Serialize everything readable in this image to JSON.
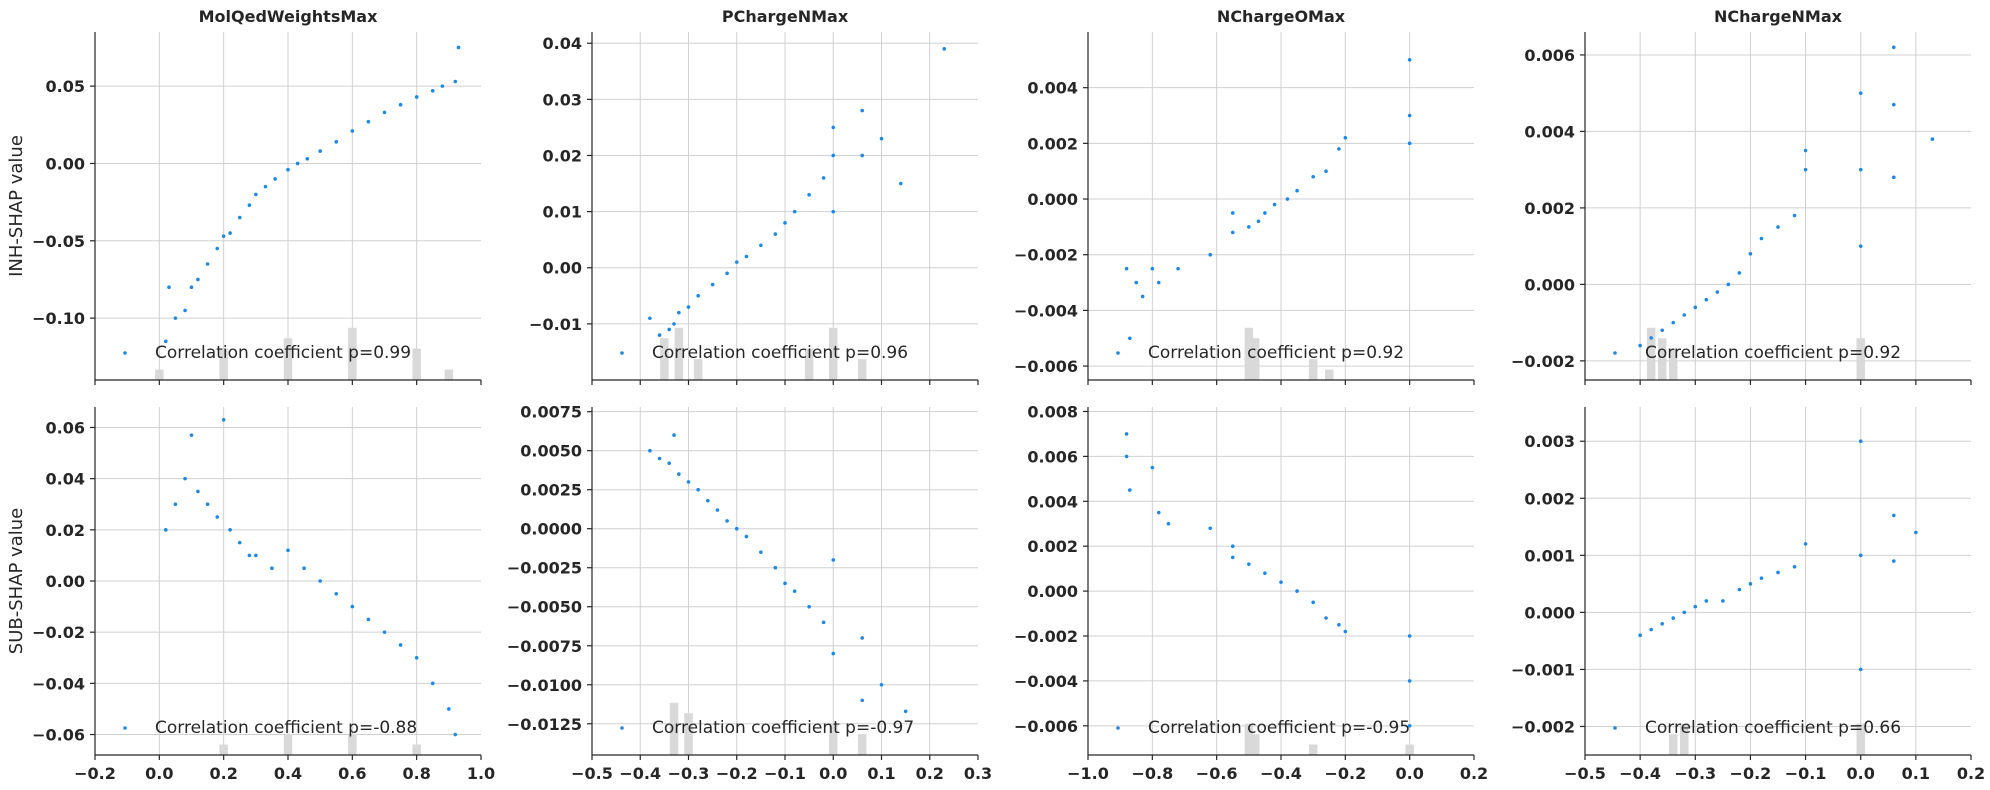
{
  "row_labels": [
    "INH-SHAP value",
    "SUB-SHAP value"
  ],
  "column_titles": [
    "MolQedWeightsMax",
    "PChargeNMax",
    "NChargeOMax",
    "NChargeNMax"
  ],
  "colors": {
    "point": "#1e88e5",
    "histogram": "#d9d9d9",
    "grid": "#d0d0d0"
  },
  "chart_data": [
    {
      "type": "scatter",
      "row": 0,
      "col": 0,
      "title": "MolQedWeightsMax",
      "ylabel": "INH-SHAP value",
      "xlim": [
        -0.2,
        1.0
      ],
      "ylim": [
        -0.14,
        0.085
      ],
      "xticks": [],
      "xtick_labels": [],
      "yticks": [
        -0.1,
        -0.05,
        0.0,
        0.05
      ],
      "ytick_labels": [
        "−0.10",
        "−0.05",
        "0.00",
        "0.05"
      ],
      "legend": "Correlation coefficient p=0.99",
      "points": [
        [
          0.02,
          -0.115
        ],
        [
          0.03,
          -0.08
        ],
        [
          0.05,
          -0.1
        ],
        [
          0.08,
          -0.095
        ],
        [
          0.1,
          -0.08
        ],
        [
          0.12,
          -0.075
        ],
        [
          0.15,
          -0.065
        ],
        [
          0.18,
          -0.055
        ],
        [
          0.2,
          -0.047
        ],
        [
          0.22,
          -0.045
        ],
        [
          0.25,
          -0.035
        ],
        [
          0.28,
          -0.027
        ],
        [
          0.3,
          -0.02
        ],
        [
          0.33,
          -0.015
        ],
        [
          0.36,
          -0.01
        ],
        [
          0.4,
          -0.004
        ],
        [
          0.43,
          0.0
        ],
        [
          0.46,
          0.003
        ],
        [
          0.5,
          0.008
        ],
        [
          0.55,
          0.014
        ],
        [
          0.6,
          0.021
        ],
        [
          0.65,
          0.027
        ],
        [
          0.7,
          0.033
        ],
        [
          0.75,
          0.038
        ],
        [
          0.8,
          0.043
        ],
        [
          0.85,
          0.047
        ],
        [
          0.88,
          0.05
        ],
        [
          0.92,
          0.053
        ],
        [
          0.93,
          0.075
        ]
      ],
      "histogram": [
        [
          0.0,
          0.01
        ],
        [
          0.2,
          0.03
        ],
        [
          0.4,
          0.04
        ],
        [
          0.6,
          0.05
        ],
        [
          0.8,
          0.03
        ],
        [
          0.9,
          0.01
        ]
      ]
    },
    {
      "type": "scatter",
      "row": 0,
      "col": 1,
      "title": "PChargeNMax",
      "ylabel": "",
      "xlim": [
        -0.5,
        0.3
      ],
      "ylim": [
        -0.02,
        0.042
      ],
      "xticks": [],
      "xtick_labels": [],
      "yticks": [
        -0.01,
        0.0,
        0.01,
        0.02,
        0.03,
        0.04
      ],
      "ytick_labels": [
        "−0.01",
        "0.00",
        "0.01",
        "0.02",
        "0.03",
        "0.04"
      ],
      "legend": "Correlation coefficient p=0.96",
      "points": [
        [
          -0.38,
          -0.009
        ],
        [
          -0.36,
          -0.012
        ],
        [
          -0.34,
          -0.011
        ],
        [
          -0.33,
          -0.01
        ],
        [
          -0.32,
          -0.008
        ],
        [
          -0.3,
          -0.007
        ],
        [
          -0.28,
          -0.005
        ],
        [
          -0.25,
          -0.003
        ],
        [
          -0.22,
          -0.001
        ],
        [
          -0.2,
          0.001
        ],
        [
          -0.18,
          0.002
        ],
        [
          -0.15,
          0.004
        ],
        [
          -0.12,
          0.006
        ],
        [
          -0.1,
          0.008
        ],
        [
          -0.08,
          0.01
        ],
        [
          -0.05,
          0.013
        ],
        [
          -0.02,
          0.016
        ],
        [
          0.0,
          0.02
        ],
        [
          0.0,
          0.01
        ],
        [
          0.0,
          0.025
        ],
        [
          0.06,
          0.02
        ],
        [
          0.06,
          0.028
        ],
        [
          0.1,
          0.023
        ],
        [
          0.14,
          0.015
        ],
        [
          0.23,
          0.039
        ]
      ],
      "histogram": [
        [
          -0.35,
          0.04
        ],
        [
          -0.32,
          0.05
        ],
        [
          -0.28,
          0.02
        ],
        [
          -0.05,
          0.03
        ],
        [
          0.0,
          0.05
        ],
        [
          0.06,
          0.02
        ]
      ]
    },
    {
      "type": "scatter",
      "row": 0,
      "col": 2,
      "title": "NChargeOMax",
      "ylabel": "",
      "xlim": [
        -1.0,
        0.2
      ],
      "ylim": [
        -0.0065,
        0.006
      ],
      "xticks": [],
      "xtick_labels": [],
      "yticks": [
        -0.006,
        -0.004,
        -0.002,
        0.0,
        0.002,
        0.004
      ],
      "ytick_labels": [
        "−0.006",
        "−0.004",
        "−0.002",
        "0.000",
        "0.002",
        "0.004"
      ],
      "legend": "Correlation coefficient p=0.92",
      "points": [
        [
          -0.88,
          -0.0025
        ],
        [
          -0.87,
          -0.005
        ],
        [
          -0.85,
          -0.003
        ],
        [
          -0.83,
          -0.0035
        ],
        [
          -0.8,
          -0.0025
        ],
        [
          -0.78,
          -0.003
        ],
        [
          -0.72,
          -0.0025
        ],
        [
          -0.62,
          -0.002
        ],
        [
          -0.55,
          -0.0012
        ],
        [
          -0.55,
          -0.0005
        ],
        [
          -0.5,
          -0.001
        ],
        [
          -0.47,
          -0.0008
        ],
        [
          -0.45,
          -0.0005
        ],
        [
          -0.42,
          -0.0002
        ],
        [
          -0.38,
          0.0
        ],
        [
          -0.35,
          0.0003
        ],
        [
          -0.3,
          0.0008
        ],
        [
          -0.26,
          0.001
        ],
        [
          -0.22,
          0.0018
        ],
        [
          -0.2,
          0.0022
        ],
        [
          0.0,
          0.005
        ],
        [
          0.0,
          0.003
        ],
        [
          0.0,
          0.002
        ]
      ],
      "histogram": [
        [
          -0.5,
          0.05
        ],
        [
          -0.48,
          0.04
        ],
        [
          -0.3,
          0.02
        ],
        [
          -0.25,
          0.01
        ]
      ]
    },
    {
      "type": "scatter",
      "row": 0,
      "col": 3,
      "title": "NChargeNMax",
      "ylabel": "",
      "xlim": [
        -0.5,
        0.2
      ],
      "ylim": [
        -0.0025,
        0.0066
      ],
      "xticks": [],
      "xtick_labels": [],
      "yticks": [
        -0.002,
        0.0,
        0.002,
        0.004,
        0.006
      ],
      "ytick_labels": [
        "−0.002",
        "0.000",
        "0.002",
        "0.004",
        "0.006"
      ],
      "legend": "Correlation coefficient p=0.92",
      "points": [
        [
          -0.4,
          -0.0016
        ],
        [
          -0.38,
          -0.0014
        ],
        [
          -0.36,
          -0.0012
        ],
        [
          -0.34,
          -0.001
        ],
        [
          -0.32,
          -0.0008
        ],
        [
          -0.3,
          -0.0006
        ],
        [
          -0.28,
          -0.0004
        ],
        [
          -0.26,
          -0.0002
        ],
        [
          -0.24,
          0.0
        ],
        [
          -0.22,
          0.0003
        ],
        [
          -0.2,
          0.0008
        ],
        [
          -0.18,
          0.0012
        ],
        [
          -0.15,
          0.0015
        ],
        [
          -0.12,
          0.0018
        ],
        [
          -0.1,
          0.003
        ],
        [
          -0.1,
          0.0035
        ],
        [
          0.0,
          0.005
        ],
        [
          0.0,
          0.003
        ],
        [
          0.0,
          0.001
        ],
        [
          0.06,
          0.0062
        ],
        [
          0.06,
          0.0047
        ],
        [
          0.06,
          0.0028
        ],
        [
          0.13,
          0.0038
        ]
      ],
      "histogram": [
        [
          -0.38,
          0.05
        ],
        [
          -0.36,
          0.04
        ],
        [
          -0.34,
          0.03
        ],
        [
          0.0,
          0.04
        ]
      ]
    },
    {
      "type": "scatter",
      "row": 1,
      "col": 0,
      "title": "",
      "ylabel": "SUB-SHAP value",
      "xlim": [
        -0.2,
        1.0
      ],
      "ylim": [
        -0.068,
        0.068
      ],
      "xticks": [
        -0.2,
        0.0,
        0.2,
        0.4,
        0.6,
        0.8,
        1.0
      ],
      "xtick_labels": [
        "−0.2",
        "0.0",
        "0.2",
        "0.4",
        "0.6",
        "0.8",
        "1.0"
      ],
      "yticks": [
        -0.06,
        -0.04,
        -0.02,
        0.0,
        0.02,
        0.04,
        0.06
      ],
      "ytick_labels": [
        "−0.06",
        "−0.04",
        "−0.02",
        "0.00",
        "0.02",
        "0.04",
        "0.06"
      ],
      "legend": "Correlation coefficient p=-0.88",
      "points": [
        [
          0.02,
          0.02
        ],
        [
          0.05,
          0.03
        ],
        [
          0.08,
          0.04
        ],
        [
          0.1,
          0.057
        ],
        [
          0.12,
          0.035
        ],
        [
          0.15,
          0.03
        ],
        [
          0.18,
          0.025
        ],
        [
          0.2,
          0.063
        ],
        [
          0.22,
          0.02
        ],
        [
          0.25,
          0.015
        ],
        [
          0.28,
          0.01
        ],
        [
          0.3,
          0.01
        ],
        [
          0.35,
          0.005
        ],
        [
          0.4,
          0.012
        ],
        [
          0.45,
          0.005
        ],
        [
          0.5,
          0.0
        ],
        [
          0.55,
          -0.005
        ],
        [
          0.6,
          -0.01
        ],
        [
          0.65,
          -0.015
        ],
        [
          0.7,
          -0.02
        ],
        [
          0.75,
          -0.025
        ],
        [
          0.8,
          -0.03
        ],
        [
          0.85,
          -0.04
        ],
        [
          0.9,
          -0.05
        ],
        [
          0.92,
          -0.06
        ]
      ],
      "histogram": [
        [
          0.2,
          0.01
        ],
        [
          0.4,
          0.02
        ],
        [
          0.6,
          0.02
        ],
        [
          0.8,
          0.01
        ]
      ]
    },
    {
      "type": "scatter",
      "row": 1,
      "col": 1,
      "title": "",
      "ylabel": "",
      "xlim": [
        -0.5,
        0.3
      ],
      "ylim": [
        -0.0145,
        0.0078
      ],
      "xticks": [
        -0.5,
        -0.4,
        -0.3,
        -0.2,
        -0.1,
        0.0,
        0.1,
        0.2,
        0.3
      ],
      "xtick_labels": [
        "−0.5",
        "−0.4",
        "−0.3",
        "−0.2",
        "−0.1",
        "0.0",
        "0.1",
        "0.2",
        "0.3"
      ],
      "yticks": [
        -0.0125,
        -0.01,
        -0.0075,
        -0.005,
        -0.0025,
        0.0,
        0.0025,
        0.005,
        0.0075
      ],
      "ytick_labels": [
        "−0.0125",
        "−0.0100",
        "−0.0075",
        "−0.0050",
        "−0.0025",
        "0.0000",
        "0.0025",
        "0.0050",
        "0.0075"
      ],
      "legend": "Correlation coefficient p=-0.97",
      "points": [
        [
          -0.38,
          0.005
        ],
        [
          -0.36,
          0.0045
        ],
        [
          -0.34,
          0.0042
        ],
        [
          -0.33,
          0.006
        ],
        [
          -0.32,
          0.0035
        ],
        [
          -0.3,
          0.003
        ],
        [
          -0.28,
          0.0025
        ],
        [
          -0.26,
          0.0018
        ],
        [
          -0.24,
          0.0012
        ],
        [
          -0.22,
          0.0005
        ],
        [
          -0.2,
          0.0
        ],
        [
          -0.18,
          -0.0005
        ],
        [
          -0.15,
          -0.0015
        ],
        [
          -0.12,
          -0.0025
        ],
        [
          -0.1,
          -0.0035
        ],
        [
          -0.08,
          -0.004
        ],
        [
          -0.05,
          -0.005
        ],
        [
          -0.02,
          -0.006
        ],
        [
          0.0,
          -0.002
        ],
        [
          0.0,
          -0.008
        ],
        [
          0.06,
          -0.007
        ],
        [
          0.06,
          -0.011
        ],
        [
          0.1,
          -0.01
        ],
        [
          0.15,
          -0.0117
        ]
      ],
      "histogram": [
        [
          -0.33,
          0.05
        ],
        [
          -0.3,
          0.04
        ],
        [
          0.0,
          0.03
        ],
        [
          0.06,
          0.02
        ]
      ]
    },
    {
      "type": "scatter",
      "row": 1,
      "col": 2,
      "title": "",
      "ylabel": "",
      "xlim": [
        -1.0,
        0.2
      ],
      "ylim": [
        -0.0073,
        0.0082
      ],
      "xticks": [
        -1.0,
        -0.8,
        -0.6,
        -0.4,
        -0.2,
        0.0,
        0.2
      ],
      "xtick_labels": [
        "−1.0",
        "−0.8",
        "−0.6",
        "−0.4",
        "−0.2",
        "0.0",
        "0.2"
      ],
      "yticks": [
        -0.006,
        -0.004,
        -0.002,
        0.0,
        0.002,
        0.004,
        0.006,
        0.008
      ],
      "ytick_labels": [
        "−0.006",
        "−0.004",
        "−0.002",
        "0.000",
        "0.002",
        "0.004",
        "0.006",
        "0.008"
      ],
      "legend": "Correlation coefficient p=-0.95",
      "points": [
        [
          -0.88,
          0.007
        ],
        [
          -0.88,
          0.006
        ],
        [
          -0.87,
          0.0045
        ],
        [
          -0.8,
          0.0055
        ],
        [
          -0.78,
          0.0035
        ],
        [
          -0.75,
          0.003
        ],
        [
          -0.62,
          0.0028
        ],
        [
          -0.55,
          0.002
        ],
        [
          -0.55,
          0.0015
        ],
        [
          -0.5,
          0.0012
        ],
        [
          -0.45,
          0.0008
        ],
        [
          -0.4,
          0.0004
        ],
        [
          -0.35,
          0.0
        ],
        [
          -0.3,
          -0.0005
        ],
        [
          -0.26,
          -0.0012
        ],
        [
          -0.22,
          -0.0015
        ],
        [
          -0.2,
          -0.0018
        ],
        [
          0.0,
          -0.002
        ],
        [
          0.0,
          -0.004
        ],
        [
          0.0,
          -0.006
        ]
      ],
      "histogram": [
        [
          -0.5,
          0.03
        ],
        [
          -0.48,
          0.02
        ],
        [
          -0.3,
          0.01
        ],
        [
          0.0,
          0.01
        ]
      ]
    },
    {
      "type": "scatter",
      "row": 1,
      "col": 3,
      "title": "",
      "ylabel": "",
      "xlim": [
        -0.5,
        0.2
      ],
      "ylim": [
        -0.0025,
        0.0036
      ],
      "xticks": [
        -0.5,
        -0.4,
        -0.3,
        -0.2,
        -0.1,
        0.0,
        0.1,
        0.2
      ],
      "xtick_labels": [
        "−0.5",
        "−0.4",
        "−0.3",
        "−0.2",
        "−0.1",
        "0.0",
        "0.1",
        "0.2"
      ],
      "yticks": [
        -0.002,
        -0.001,
        0.0,
        0.001,
        0.002,
        0.003
      ],
      "ytick_labels": [
        "−0.002",
        "−0.001",
        "0.000",
        "0.001",
        "0.002",
        "0.003"
      ],
      "legend": "Correlation coefficient p=0.66",
      "points": [
        [
          -0.4,
          -0.0004
        ],
        [
          -0.38,
          -0.0003
        ],
        [
          -0.36,
          -0.0002
        ],
        [
          -0.34,
          -0.0001
        ],
        [
          -0.32,
          0.0
        ],
        [
          -0.3,
          0.0001
        ],
        [
          -0.28,
          0.0002
        ],
        [
          -0.25,
          0.0002
        ],
        [
          -0.22,
          0.0004
        ],
        [
          -0.2,
          0.0005
        ],
        [
          -0.18,
          0.0006
        ],
        [
          -0.15,
          0.0007
        ],
        [
          -0.12,
          0.0008
        ],
        [
          -0.1,
          0.0012
        ],
        [
          0.0,
          0.003
        ],
        [
          0.0,
          0.001
        ],
        [
          0.0,
          -0.001
        ],
        [
          0.06,
          0.0017
        ],
        [
          0.06,
          0.0009
        ],
        [
          0.1,
          0.0014
        ]
      ],
      "histogram": [
        [
          -0.34,
          0.02
        ],
        [
          -0.32,
          0.03
        ],
        [
          0.0,
          0.03
        ]
      ]
    }
  ]
}
